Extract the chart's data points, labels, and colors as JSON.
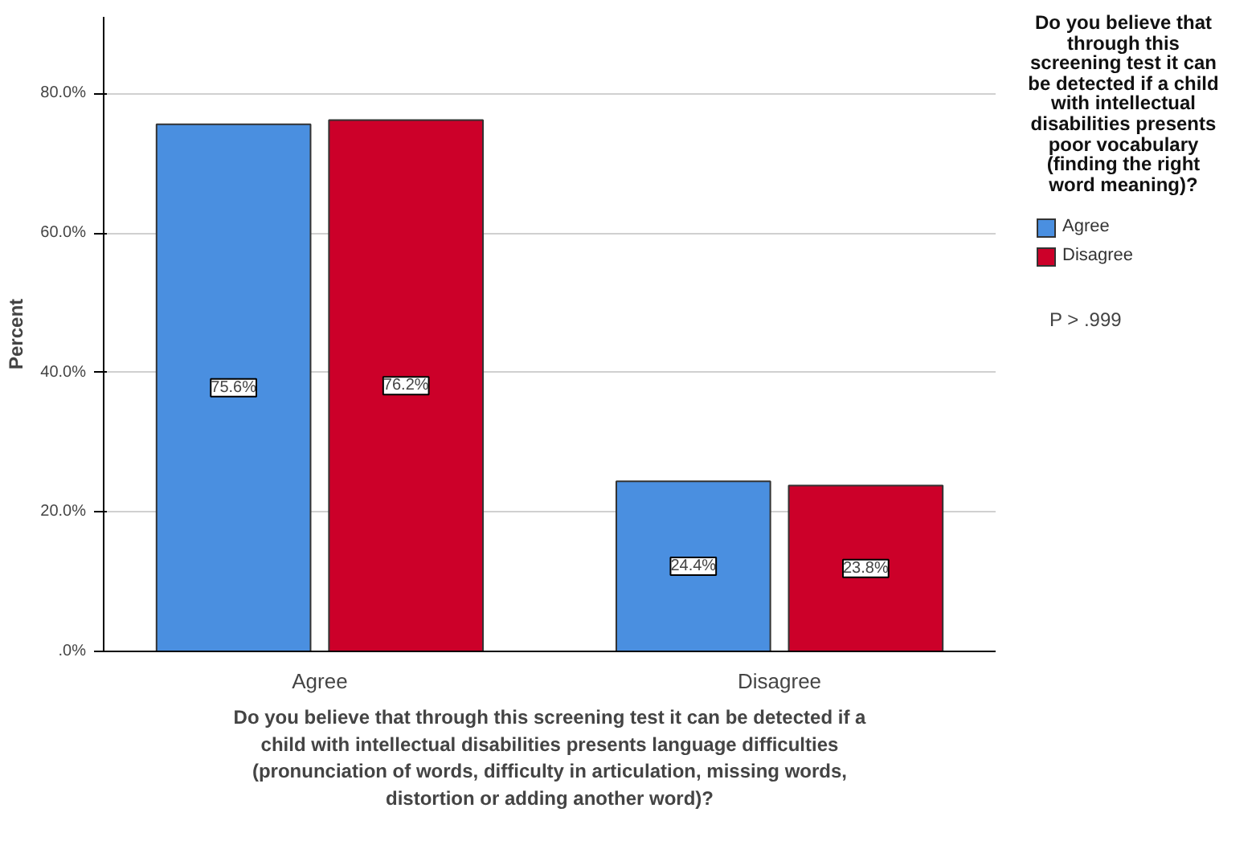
{
  "chart_data": {
    "type": "bar",
    "ylabel": "Percent",
    "xlabel": "Do you believe that through this screening test it can be detected if a child with intellectual disabilities presents language difficulties (pronunciation of words, difficulty in articulation, missing words, distortion or adding another word)?",
    "legend_title": "Do you believe that through this screening test it can be detected if a child with intellectual disabilities presents poor vocabulary (finding the right word meaning)?",
    "categories": [
      "Agree",
      "Disagree"
    ],
    "series": [
      {
        "name": "Agree",
        "color": "#4a8fe0",
        "values": [
          75.6,
          24.4
        ]
      },
      {
        "name": "Disagree",
        "color": "#cc0029",
        "values": [
          76.2,
          23.8
        ]
      }
    ],
    "value_labels": [
      [
        "75.6%",
        "24.4%"
      ],
      [
        "76.2%",
        "23.8%"
      ]
    ],
    "ylim": [
      0,
      91
    ],
    "yticks": [
      {
        "value": 0,
        "label": ".0%"
      },
      {
        "value": 20,
        "label": "20.0%"
      },
      {
        "value": 40,
        "label": "40.0%"
      },
      {
        "value": 60,
        "label": "60.0%"
      },
      {
        "value": 80,
        "label": "80.0%"
      }
    ],
    "grid": "y",
    "legend": "right",
    "annotations": [
      "P > .999"
    ]
  }
}
